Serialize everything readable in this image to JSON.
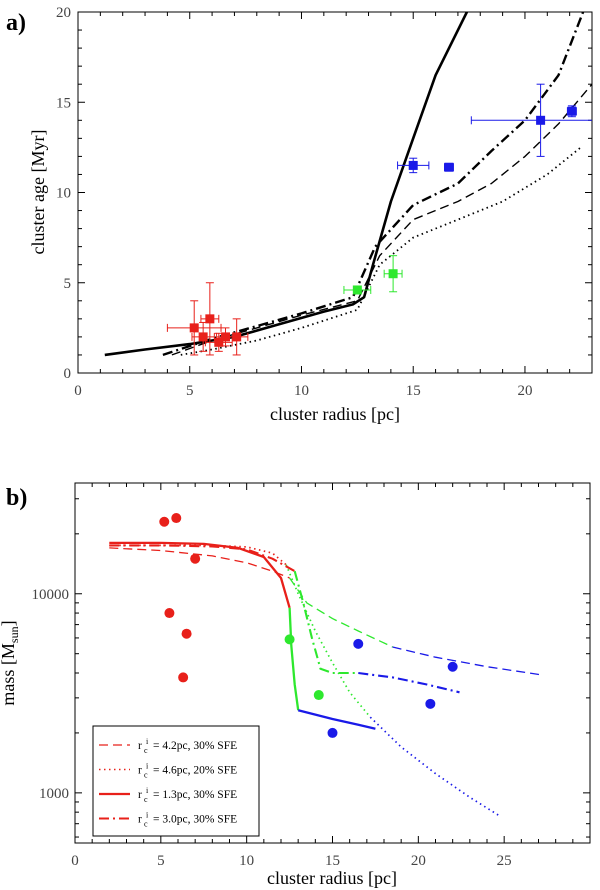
{
  "chart_data": [
    {
      "type": "scatter",
      "panel_label": "a)",
      "title": "",
      "xlabel": "cluster radius [pc]",
      "ylabel": "cluster age [Myr]",
      "xlim": [
        0,
        23
      ],
      "ylim": [
        0,
        20
      ],
      "xticks": [
        0,
        5,
        10,
        15,
        20
      ],
      "yticks": [
        0,
        5,
        10,
        15,
        20
      ],
      "series": [
        {
          "name": "red clusters",
          "kind": "points",
          "color": "#e8201a",
          "points": [
            {
              "x": 5.2,
              "y": 2.5,
              "xerr": 1.2,
              "yerr": 1.5
            },
            {
              "x": 5.6,
              "y": 2.0,
              "xerr": 0.5,
              "yerr": 0.8
            },
            {
              "x": 5.9,
              "y": 3.0,
              "xerr": 0.4,
              "yerr": 2.0
            },
            {
              "x": 6.3,
              "y": 1.7,
              "xerr": 0.6,
              "yerr": 0.5
            },
            {
              "x": 6.6,
              "y": 2.0,
              "xerr": 0.4,
              "yerr": 0.5
            },
            {
              "x": 7.1,
              "y": 2.0,
              "xerr": 0.5,
              "yerr": 1.0
            }
          ]
        },
        {
          "name": "green clusters",
          "kind": "points",
          "color": "#2ee82e",
          "points": [
            {
              "x": 12.5,
              "y": 4.6,
              "xerr": 0.6,
              "yerr": 0.1
            },
            {
              "x": 14.1,
              "y": 5.5,
              "xerr": 0.4,
              "yerr": 1.0
            }
          ]
        },
        {
          "name": "blue clusters",
          "kind": "points",
          "color": "#1a1ae8",
          "points": [
            {
              "x": 15.0,
              "y": 11.5,
              "xerr": 0.7,
              "yerr": 0.4
            },
            {
              "x": 16.6,
              "y": 11.4,
              "xerr": 0.2,
              "yerr": 0
            },
            {
              "x": 20.7,
              "y": 14.0,
              "xerr": 3.1,
              "yerr": 2.0
            },
            {
              "x": 22.1,
              "y": 14.5,
              "xerr": 0.2,
              "yerr": 0.3
            }
          ]
        },
        {
          "name": "solid",
          "kind": "line",
          "dash": "solid",
          "width": 2.6,
          "x": [
            1.2,
            3,
            5,
            7,
            9,
            11,
            12.3,
            12.8,
            13.2,
            14,
            15,
            16,
            17.4
          ],
          "y": [
            1.0,
            1.3,
            1.6,
            2.0,
            2.7,
            3.4,
            3.8,
            4.2,
            6.0,
            9.5,
            13.0,
            16.5,
            20.0
          ]
        },
        {
          "name": "dashed",
          "kind": "line",
          "dash": "9,5",
          "width": 1.4,
          "x": [
            4.2,
            6,
            8,
            10,
            12.5,
            13.5,
            15,
            17,
            18.5,
            20,
            21.5,
            23
          ],
          "y": [
            1.0,
            1.8,
            2.5,
            3.2,
            4.0,
            6.5,
            8.5,
            9.5,
            10.5,
            12.0,
            13.8,
            16.0
          ]
        },
        {
          "name": "dotted",
          "kind": "line",
          "dash": "1.5,3.5",
          "width": 1.8,
          "x": [
            4.6,
            6,
            8,
            10,
            12.5,
            13.5,
            15,
            17,
            19,
            21,
            22.5
          ],
          "y": [
            1.0,
            1.3,
            1.8,
            2.5,
            3.5,
            6.0,
            7.5,
            8.5,
            9.5,
            11.0,
            12.5
          ]
        },
        {
          "name": "dash-dot",
          "kind": "line",
          "dash": "10,4,2,4",
          "width": 2.4,
          "x": [
            3.8,
            6,
            8,
            10,
            12.3,
            13.3,
            15,
            17,
            18.5,
            20,
            21.5,
            22.6
          ],
          "y": [
            1.0,
            1.9,
            2.6,
            3.3,
            4.2,
            7.0,
            9.3,
            10.5,
            12.3,
            14.0,
            16.5,
            20.0
          ]
        }
      ]
    },
    {
      "type": "scatter",
      "panel_label": "b)",
      "title": "",
      "xlabel": "cluster radius [pc]",
      "ylabel": "mass [M_sun]",
      "yscale": "log",
      "xlim": [
        0,
        30
      ],
      "ylim": [
        560,
        36000
      ],
      "xticks": [
        0,
        5,
        10,
        15,
        20,
        25
      ],
      "yticks": [
        1000,
        10000
      ],
      "legend_position": "bottom-left",
      "legend": [
        {
          "text": "= 4.2pc, 30% SFE",
          "rc": "r",
          "sub": "c",
          "sup": "i",
          "dash": "9,5",
          "width": 1.2
        },
        {
          "text": "= 4.6pc, 20% SFE",
          "rc": "r",
          "sub": "c",
          "sup": "i",
          "dash": "1.5,3.5",
          "width": 1.6
        },
        {
          "text": "= 1.3pc, 30% SFE",
          "rc": "r",
          "sub": "c",
          "sup": "i",
          "dash": "solid",
          "width": 2.2
        },
        {
          "text": "= 3.0pc, 30% SFE",
          "rc": "r",
          "sub": "c",
          "sup": "i",
          "dash": "10,4,2,4",
          "width": 2.0
        }
      ],
      "series": [
        {
          "name": "red clusters",
          "kind": "points",
          "color": "#e8201a",
          "points": [
            {
              "x": 5.2,
              "y": 23000
            },
            {
              "x": 5.9,
              "y": 24000
            },
            {
              "x": 7.0,
              "y": 15000
            },
            {
              "x": 5.5,
              "y": 8000
            },
            {
              "x": 6.5,
              "y": 6300
            },
            {
              "x": 6.3,
              "y": 3800
            }
          ]
        },
        {
          "name": "green clusters",
          "kind": "points",
          "color": "#2ee82e",
          "points": [
            {
              "x": 12.5,
              "y": 5900
            },
            {
              "x": 14.2,
              "y": 3100
            }
          ]
        },
        {
          "name": "blue clusters",
          "kind": "points",
          "color": "#1a1ae8",
          "points": [
            {
              "x": 16.5,
              "y": 5600
            },
            {
              "x": 22.0,
              "y": 4300
            },
            {
              "x": 20.7,
              "y": 2800
            },
            {
              "x": 15.0,
              "y": 2000
            }
          ]
        },
        {
          "name": "dashed",
          "kind": "line",
          "dash": "9,5",
          "width": 1.3,
          "segments": [
            {
              "color": "#e8201a",
              "x": [
                2.0,
                5,
                8,
                10,
                11.5,
                12.5
              ],
              "y": [
                17000,
                16500,
                15500,
                14300,
                13000,
                12000
              ]
            },
            {
              "color": "#2ee82e",
              "x": [
                12.5,
                13.5,
                15,
                16.5,
                18.5
              ],
              "y": [
                12000,
                9000,
                7500,
                6500,
                5400
              ]
            },
            {
              "color": "#1a1ae8",
              "x": [
                18.5,
                21,
                24,
                27.3
              ],
              "y": [
                5400,
                4800,
                4300,
                3900
              ]
            }
          ]
        },
        {
          "name": "dotted",
          "kind": "line",
          "dash": "1.5,3.5",
          "width": 1.7,
          "segments": [
            {
              "color": "#e8201a",
              "x": [
                2.0,
                5,
                8,
                10,
                11.5,
                12.3
              ],
              "y": [
                17500,
                17500,
                17500,
                17200,
                16000,
                14000
              ]
            },
            {
              "color": "#2ee82e",
              "x": [
                12.3,
                13,
                14,
                15,
                16,
                17.2
              ],
              "y": [
                14000,
                10000,
                6500,
                4500,
                3200,
                2400
              ]
            },
            {
              "color": "#1a1ae8",
              "x": [
                17.2,
                19,
                21,
                23,
                24.8
              ],
              "y": [
                2400,
                1700,
                1250,
                950,
                760
              ]
            }
          ]
        },
        {
          "name": "solid",
          "kind": "line",
          "dash": "solid",
          "width": 2.3,
          "segments": [
            {
              "color": "#e8201a",
              "x": [
                2.0,
                5,
                7.5,
                9.5,
                11,
                12,
                12.5
              ],
              "y": [
                18000,
                18000,
                17800,
                17000,
                15300,
                12000,
                8500
              ]
            },
            {
              "color": "#2ee82e",
              "x": [
                12.5,
                12.6,
                12.8,
                13.0
              ],
              "y": [
                8500,
                5500,
                3500,
                2600
              ]
            },
            {
              "color": "#1a1ae8",
              "x": [
                13.0,
                15,
                16.5,
                17.5
              ],
              "y": [
                2600,
                2350,
                2200,
                2100
              ]
            }
          ]
        },
        {
          "name": "dash-dot",
          "kind": "line",
          "dash": "10,4,2,4",
          "width": 2.1,
          "segments": [
            {
              "color": "#e8201a",
              "x": [
                2.0,
                5,
                8,
                10,
                11.5,
                12.8
              ],
              "y": [
                17500,
                17500,
                17300,
                16700,
                15000,
                13000
              ]
            },
            {
              "color": "#2ee82e",
              "x": [
                12.8,
                13.3,
                13.8,
                14.3,
                15,
                16.5
              ],
              "y": [
                13000,
                9000,
                6000,
                4200,
                4000,
                4000
              ]
            },
            {
              "color": "#1a1ae8",
              "x": [
                16.5,
                18.5,
                20.5,
                22.4
              ],
              "y": [
                4000,
                3800,
                3500,
                3200
              ]
            }
          ]
        }
      ]
    }
  ]
}
